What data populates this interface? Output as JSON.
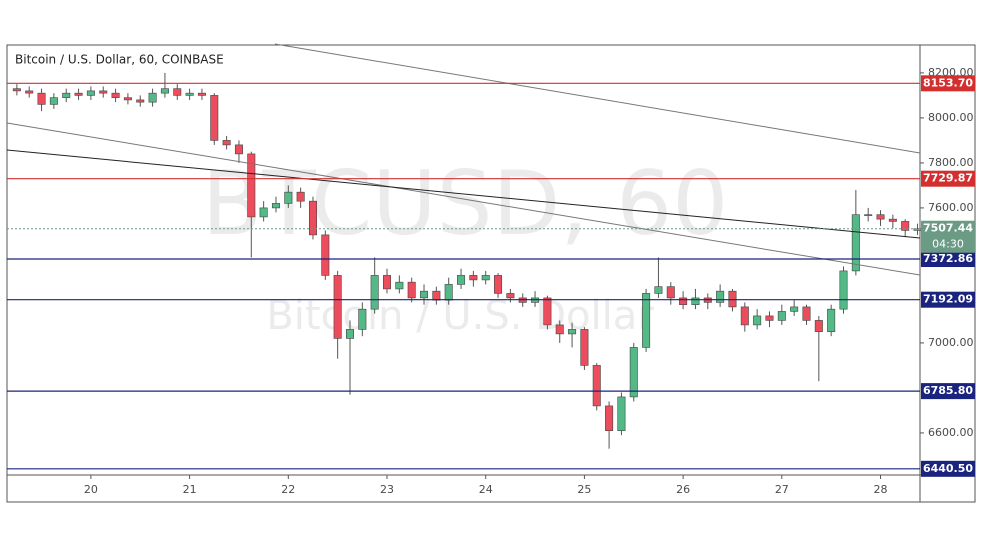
{
  "chart_data": {
    "type": "candlestick",
    "title": "Bitcoin / U.S. Dollar, 60, COINBASE",
    "watermark": "BTCUSD, 60",
    "watermark_subtitle": "Bitcoin / U.S. Dollar",
    "x": [
      19.25,
      19.375,
      19.5,
      19.625,
      19.75,
      19.875,
      20,
      20.125,
      20.25,
      20.375,
      20.5,
      20.625,
      20.75,
      20.875,
      21,
      21.125,
      21.25,
      21.375,
      21.5,
      21.625,
      21.75,
      21.875,
      22,
      22.125,
      22.25,
      22.375,
      22.5,
      22.625,
      22.75,
      22.875,
      23,
      23.125,
      23.25,
      23.375,
      23.5,
      23.625,
      23.75,
      23.875,
      24,
      24.125,
      24.25,
      24.375,
      24.5,
      24.625,
      24.75,
      24.875,
      25,
      25.125,
      25.25,
      25.375,
      25.5,
      25.625,
      25.75,
      25.875,
      26,
      26.125,
      26.25,
      26.375,
      26.5,
      26.625,
      26.75,
      26.875,
      27,
      27.125,
      27.25,
      27.375,
      27.5,
      27.625,
      27.75,
      27.875,
      28,
      28.125,
      28.25,
      28.375
    ],
    "open": [
      8130,
      8120,
      8110,
      8060,
      8090,
      8110,
      8100,
      8120,
      8110,
      8090,
      8080,
      8070,
      8110,
      8130,
      8100,
      8110,
      8100,
      7900,
      7880,
      7840,
      7560,
      7600,
      7620,
      7670,
      7630,
      7480,
      7300,
      7020,
      7060,
      7150,
      7300,
      7240,
      7270,
      7200,
      7230,
      7190,
      7260,
      7300,
      7280,
      7300,
      7220,
      7200,
      7180,
      7200,
      7080,
      7040,
      7060,
      6900,
      6720,
      6610,
      6760,
      6980,
      7220,
      7250,
      7200,
      7170,
      7200,
      7180,
      7230,
      7160,
      7080,
      7120,
      7100,
      7140,
      7160,
      7100,
      7050,
      7150,
      7320,
      7570,
      7570,
      7550,
      7540,
      7500
    ],
    "high": [
      8150,
      8140,
      8130,
      8110,
      8130,
      8130,
      8140,
      8140,
      8130,
      8110,
      8100,
      8130,
      8200,
      8150,
      8130,
      8130,
      8110,
      7920,
      7900,
      7850,
      7630,
      7650,
      7700,
      7690,
      7650,
      7500,
      7320,
      7100,
      7180,
      7380,
      7330,
      7300,
      7290,
      7260,
      7250,
      7290,
      7330,
      7320,
      7320,
      7310,
      7240,
      7220,
      7230,
      7210,
      7100,
      7090,
      7070,
      6910,
      6740,
      6780,
      7000,
      7240,
      7380,
      7270,
      7230,
      7240,
      7220,
      7260,
      7240,
      7180,
      7150,
      7140,
      7170,
      7190,
      7170,
      7120,
      7170,
      7340,
      7680,
      7600,
      7590,
      7570,
      7550,
      7530
    ],
    "low": [
      8100,
      8090,
      8030,
      8040,
      8070,
      8080,
      8080,
      8090,
      8070,
      8060,
      8050,
      8050,
      8090,
      8080,
      8080,
      8080,
      7880,
      7860,
      7800,
      7380,
      7540,
      7580,
      7600,
      7600,
      7460,
      7280,
      6930,
      6770,
      7030,
      7130,
      7220,
      7220,
      7180,
      7170,
      7170,
      7170,
      7240,
      7250,
      7260,
      7200,
      7180,
      7160,
      7160,
      7060,
      7000,
      6980,
      6880,
      6700,
      6530,
      6590,
      6740,
      6960,
      7200,
      7170,
      7150,
      7150,
      7150,
      7160,
      7140,
      7050,
      7060,
      7070,
      7080,
      7120,
      7080,
      6830,
      7030,
      7130,
      7300,
      7540,
      7520,
      7510,
      7470,
      7480
    ],
    "close": [
      8120,
      8110,
      8060,
      8090,
      8110,
      8100,
      8120,
      8110,
      8090,
      8080,
      8070,
      8110,
      8130,
      8100,
      8110,
      8100,
      7900,
      7880,
      7840,
      7560,
      7600,
      7620,
      7670,
      7630,
      7480,
      7300,
      7020,
      7060,
      7150,
      7300,
      7240,
      7270,
      7200,
      7230,
      7190,
      7260,
      7300,
      7280,
      7300,
      7220,
      7200,
      7180,
      7200,
      7080,
      7040,
      7060,
      6900,
      6720,
      6610,
      6760,
      6980,
      7220,
      7250,
      7200,
      7170,
      7200,
      7180,
      7230,
      7160,
      7080,
      7120,
      7100,
      7140,
      7160,
      7100,
      7050,
      7150,
      7320,
      7570,
      7570,
      7550,
      7540,
      7500,
      7507.44
    ],
    "up_color": "#53b987",
    "down_color": "#eb4d5c",
    "xlim": [
      19.15,
      28.4
    ],
    "xticks": [
      20,
      21,
      22,
      23,
      24,
      25,
      26,
      27,
      28
    ],
    "ylim": [
      6413,
      8324
    ],
    "yticks": [
      {
        "value": 8200,
        "label": "8200.00"
      },
      {
        "value": 8000,
        "label": "8000.00"
      },
      {
        "value": 7800,
        "label": "7800.00"
      },
      {
        "value": 7600,
        "label": "7600.00"
      },
      {
        "value": 7000,
        "label": "7000.00"
      },
      {
        "value": 6600,
        "label": "6600.00"
      }
    ],
    "levels": [
      {
        "value": 8153.7,
        "label": "8153.70",
        "color": "#d32f2f"
      },
      {
        "value": 7729.87,
        "label": "7729.87",
        "color": "#d32f2f"
      },
      {
        "value": 7372.86,
        "label": "7372.86",
        "color": "#1a237e"
      },
      {
        "value": 7192.09,
        "label": "7192.09",
        "color": "#1a237e"
      },
      {
        "value": 6785.8,
        "label": "6785.80",
        "color": "#1a237e"
      },
      {
        "value": 6440.5,
        "label": "6440.50",
        "color": "#1a237e"
      }
    ],
    "last_price": {
      "value": 7507.44,
      "label": "7507.44",
      "color": "#6b9a85"
    },
    "countdown": "04:30"
  }
}
